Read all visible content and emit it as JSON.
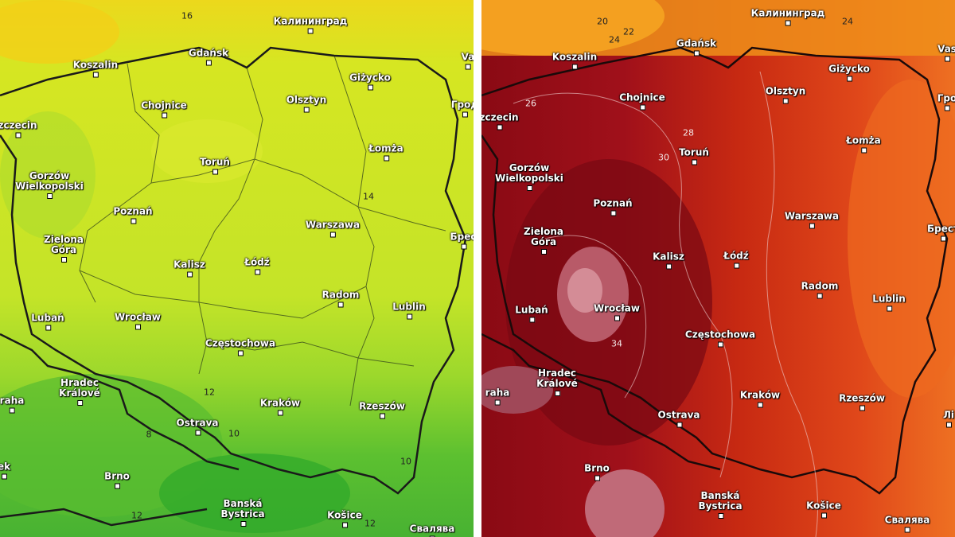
{
  "panels": [
    {
      "labels": [
        "16",
        "Калининград",
        "Gdańsk",
        "Koszalin",
        "Va",
        "Giżycko",
        "Olsztyn",
        "Chojnice",
        "Грод",
        "zczecin",
        "Łomża",
        "Toruń",
        "Gorzów\nWielkopolski",
        "14",
        "Poznań",
        "Warszawa",
        "Брес",
        "Zielona\nGóra",
        "Łódź",
        "Kalisz",
        "Radom",
        "Lublin",
        "Wrocław",
        "Lubań",
        "Częstochowa",
        "Hradec\nKrálové",
        "12",
        "raha",
        "Kraków",
        "Rzeszów",
        "Ostrava",
        "10",
        "8",
        "10",
        "ek",
        "Brno",
        "Banská\nBystrica",
        "Košice",
        "12",
        "12",
        "Свалява"
      ]
    },
    {
      "labels": [
        "20",
        "22",
        "24",
        "Калининград",
        "24",
        "Gdańsk",
        "Koszalin",
        "Vas",
        "Giżycko",
        "Гро",
        "26",
        "Olsztyn",
        "Chojnice",
        "zczecin",
        "28",
        "Toruń",
        "30",
        "Łomża",
        "Gorzów\nWielkopolski",
        "Poznań",
        "Warszawa",
        "Брест",
        "Zielona\nGóra",
        "Kalisz",
        "Łódź",
        "Radom",
        "Lublin",
        "Lubań",
        "Wrocław",
        "34",
        "Częstochowa",
        "Hradec\nKrálové",
        "raha",
        "Kraków",
        "Rzeszów",
        "Ostrava",
        "Лі",
        "Brno",
        "Banská\nBystrica",
        "Košice",
        "Свалява"
      ]
    }
  ]
}
